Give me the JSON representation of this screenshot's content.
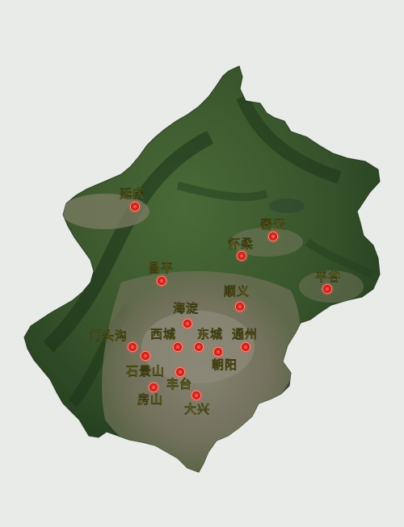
{
  "map": {
    "region": "北京",
    "colors": {
      "background": "#e8ebe8",
      "mountain_dark": "#1f3a1c",
      "mountain": "#3f5f30",
      "urban": "#7a7868",
      "label": "#f5e85a",
      "marker": "#e0241d",
      "marker_glow": "#ff5a4a"
    },
    "districts": [
      {
        "id": "yanqing",
        "name": "延庆"
      },
      {
        "id": "miyun",
        "name": "密云"
      },
      {
        "id": "huairou",
        "name": "怀柔"
      },
      {
        "id": "changping",
        "name": "昌平"
      },
      {
        "id": "pinggu",
        "name": "平谷"
      },
      {
        "id": "shunyi",
        "name": "顺义"
      },
      {
        "id": "haidian",
        "name": "海淀"
      },
      {
        "id": "mentougou",
        "name": "门头沟"
      },
      {
        "id": "xicheng",
        "name": "西城"
      },
      {
        "id": "dongcheng",
        "name": "东城"
      },
      {
        "id": "tongzhou",
        "name": "通州"
      },
      {
        "id": "chaoyang",
        "name": "朝阳"
      },
      {
        "id": "shijingshan",
        "name": "石景山"
      },
      {
        "id": "fengtai",
        "name": "丰台"
      },
      {
        "id": "fangshan",
        "name": "房山"
      },
      {
        "id": "daxing",
        "name": "大兴"
      }
    ]
  }
}
